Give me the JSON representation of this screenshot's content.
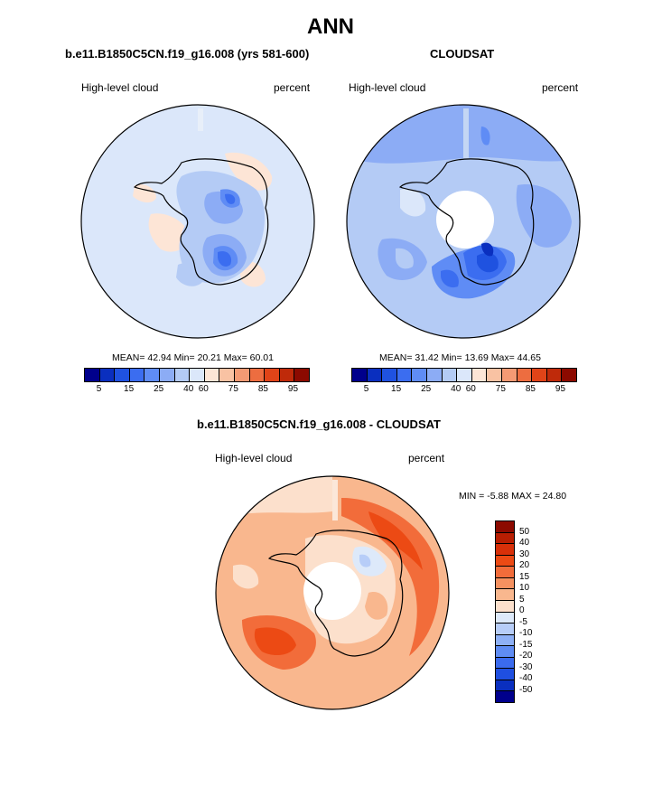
{
  "title": "ANN",
  "panel_left": {
    "title": "b.e11.B1850C5CN.f19_g16.008 (yrs 581-600)",
    "variable": "High-level cloud",
    "units": "percent",
    "stats": {
      "mean_label": "MEAN=",
      "mean": "42.94",
      "min_label": "Min=",
      "min": "20.21",
      "max_label": "Max=",
      "max": "60.01"
    }
  },
  "panel_right": {
    "title": "CLOUDSAT",
    "variable": "High-level cloud",
    "units": "percent",
    "stats": {
      "mean_label": "MEAN=",
      "mean": "31.42",
      "min_label": "Min=",
      "min": "13.69",
      "max_label": "Max=",
      "max": "44.65"
    }
  },
  "panel_diff": {
    "title": "b.e11.B1850C5CN.f19_g16.008 - CLOUDSAT",
    "variable": "High-level cloud",
    "units": "percent",
    "minmax": "MIN =  -5.88 MAX =  24.80"
  },
  "colorbar_top": {
    "colors": [
      "#00008c",
      "#0a2fbf",
      "#1f52e0",
      "#3b6df0",
      "#5f8cf5",
      "#8cacf5",
      "#b4cbf5",
      "#dbe7fa",
      "#fde5d6",
      "#f9c2a3",
      "#f49a74",
      "#ed6d40",
      "#e04418",
      "#bf2a0a",
      "#8c0a00"
    ],
    "ticks": [
      "5",
      "15",
      "25",
      "40",
      "60",
      "75",
      "85",
      "95"
    ]
  },
  "colorbar_diff": {
    "colors": [
      "#8c0a00",
      "#b81e02",
      "#d83009",
      "#ec4a14",
      "#f26c3a",
      "#f59160",
      "#f9b78e",
      "#fce0cc",
      "#dde9fa",
      "#b7cdf8",
      "#8eb0f6",
      "#5f8cf3",
      "#3b6bee",
      "#1f4fe0",
      "#0a2fbf",
      "#00008c"
    ],
    "ticks": [
      "50",
      "40",
      "30",
      "20",
      "15",
      "10",
      "5",
      "0",
      "-5",
      "-10",
      "-15",
      "-20",
      "-30",
      "-40",
      "-50"
    ]
  }
}
